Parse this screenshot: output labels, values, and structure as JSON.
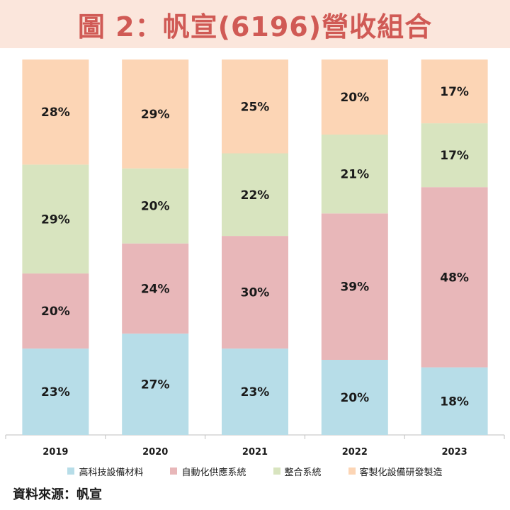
{
  "title": "圖 2：帆宣(6196)營收組合",
  "source": "資料來源：帆宣",
  "chart_data": {
    "type": "bar",
    "stacked": true,
    "normalized": true,
    "categories": [
      "2019",
      "2020",
      "2021",
      "2022",
      "2023"
    ],
    "series": [
      {
        "name": "高科技設備材料",
        "color": "#b7dde8",
        "values": [
          23,
          27,
          23,
          20,
          18
        ]
      },
      {
        "name": "自動化供應系統",
        "color": "#e8b7b9",
        "values": [
          20,
          24,
          30,
          39,
          48
        ]
      },
      {
        "name": "整合系統",
        "color": "#d8e4bf",
        "values": [
          29,
          20,
          22,
          21,
          17
        ]
      },
      {
        "name": "客製化設備研發製造",
        "color": "#fcd5b5",
        "values": [
          28,
          29,
          25,
          20,
          17
        ]
      }
    ],
    "value_suffix": "%",
    "legend_position": "bottom",
    "grid": false
  }
}
